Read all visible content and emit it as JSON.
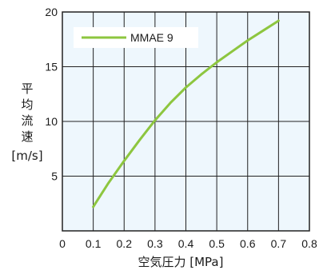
{
  "chart_data": {
    "type": "line",
    "title": "",
    "xlabel": "空気圧力 [MPa]",
    "ylabel_chars": [
      "平",
      "均",
      "流",
      "速"
    ],
    "ylabel_unit": "[m/s]",
    "xlim": [
      0,
      0.8
    ],
    "ylim": [
      0,
      20
    ],
    "x_ticks": [
      "0",
      "0.1",
      "0.2",
      "0.3",
      "0.4",
      "0.5",
      "0.6",
      "0.7",
      "0.8"
    ],
    "y_ticks": [
      "5",
      "10",
      "15",
      "20"
    ],
    "grid": true,
    "legend_position": "top-left",
    "colors": {
      "background": "#eef7fd",
      "series": "#8dc63f",
      "grid": "#222222"
    },
    "series": [
      {
        "name": "MMAE 9",
        "x": [
          0.1,
          0.15,
          0.2,
          0.25,
          0.3,
          0.35,
          0.4,
          0.45,
          0.5,
          0.55,
          0.6,
          0.65,
          0.7
        ],
        "y": [
          2.2,
          4.4,
          6.4,
          8.3,
          10.1,
          11.7,
          13.1,
          14.3,
          15.4,
          16.4,
          17.4,
          18.3,
          19.2
        ]
      }
    ]
  }
}
